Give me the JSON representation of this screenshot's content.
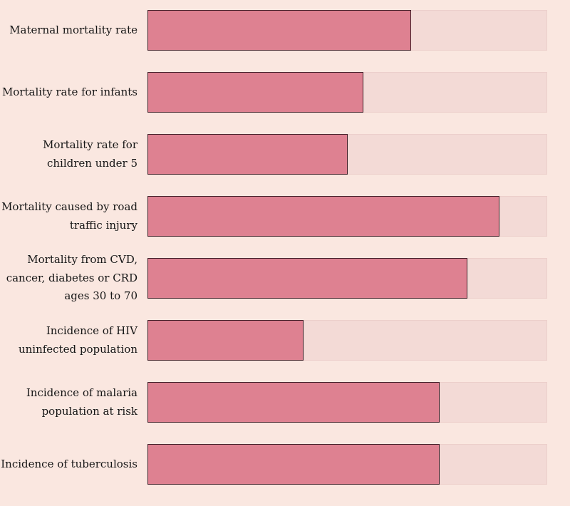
{
  "chart_data": {
    "type": "bar",
    "orientation": "horizontal",
    "title": "",
    "xlabel": "",
    "ylabel": "",
    "xlim": [
      0,
      1
    ],
    "grid": false,
    "legend": "none",
    "categories": [
      "Maternal mortality rate",
      "Mortality rate for infants",
      "Mortality rate for children under 5",
      "Mortality caused by road traffic injury",
      "Mortality from CVD, cancer, diabetes or CRD ages 30 to 70",
      "Incidence of HIV uninfected population",
      "Incidence of malaria population at risk",
      "Incidence of tuberculosis"
    ],
    "values": [
      0.66,
      0.54,
      0.5,
      0.88,
      0.8,
      0.39,
      0.73,
      0.73
    ],
    "colors": {
      "background": "#fae7e0",
      "bar_fill": "#de8191",
      "bar_border": "#401e27",
      "track_fill": "#f3dad6",
      "text": "#151515"
    }
  }
}
